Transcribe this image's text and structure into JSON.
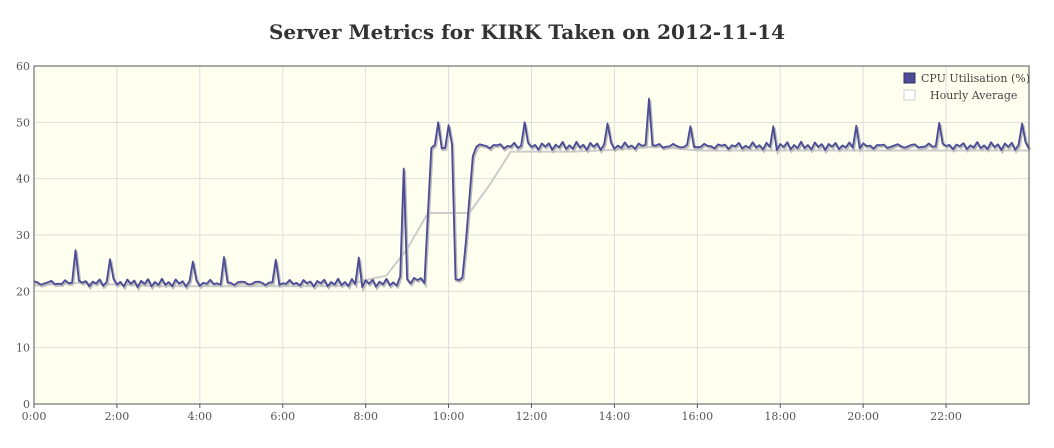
{
  "chart_data": {
    "type": "line",
    "title": "Server Metrics for KIRK Taken on 2012-11-14",
    "xlabel": "",
    "ylabel": "",
    "xlim": [
      0,
      24
    ],
    "ylim": [
      0,
      60
    ],
    "x_ticks": [
      "0:00",
      "2:00",
      "4:00",
      "6:00",
      "8:00",
      "10:00",
      "12:00",
      "14:00",
      "16:00",
      "18:00",
      "20:00",
      "22:00"
    ],
    "y_ticks": [
      0,
      10,
      20,
      30,
      40,
      50,
      60
    ],
    "grid": true,
    "legend_position": "top-right",
    "colors": {
      "cpu": "#4b4b96",
      "hourly": "#cccccc",
      "plot_background": "#fffff0",
      "grid": "#dddddd"
    },
    "series": [
      {
        "name": "CPU Utilisation (%)",
        "color": "#4b4b96",
        "base_segments": [
          {
            "x": [
              0,
              8.75
            ],
            "y": [
              21.5,
              21.5
            ]
          },
          {
            "x": [
              8.75,
              9.45
            ],
            "y": [
              22.0,
              22.0
            ]
          },
          {
            "x": [
              9.55,
              9.9
            ],
            "y": [
              45.5,
              45.5
            ]
          },
          {
            "x": [
              9.95,
              10.1
            ],
            "y": [
              46.0,
              46.0
            ]
          },
          {
            "x": [
              10.15,
              10.35
            ],
            "y": [
              22.3,
              22.3
            ]
          },
          {
            "x": [
              10.6,
              24
            ],
            "y": [
              45.8,
              45.8
            ]
          }
        ],
        "spikes": [
          {
            "x": 1.0,
            "y": 27.3
          },
          {
            "x": 1.85,
            "y": 25.7
          },
          {
            "x": 3.85,
            "y": 25.3
          },
          {
            "x": 4.55,
            "y": 26.1
          },
          {
            "x": 5.85,
            "y": 25.6
          },
          {
            "x": 7.85,
            "y": 26.0
          },
          {
            "x": 8.9,
            "y": 41.8
          },
          {
            "x": 9.75,
            "y": 50.0
          },
          {
            "x": 10.0,
            "y": 49.5
          },
          {
            "x": 11.8,
            "y": 50.0
          },
          {
            "x": 13.85,
            "y": 49.8
          },
          {
            "x": 14.8,
            "y": 54.2
          },
          {
            "x": 15.85,
            "y": 49.3
          },
          {
            "x": 17.8,
            "y": 49.3
          },
          {
            "x": 19.8,
            "y": 49.4
          },
          {
            "x": 21.8,
            "y": 49.9
          },
          {
            "x": 23.85,
            "y": 49.8
          }
        ]
      },
      {
        "name": "Hourly Average",
        "color": "#cccccc",
        "x": [
          0,
          1,
          2,
          3,
          4,
          5,
          6,
          7,
          7.5,
          8,
          8.5,
          9,
          9.5,
          10,
          10.5,
          11,
          11.5,
          12,
          13,
          14,
          15,
          16,
          17,
          18,
          19,
          20,
          21,
          22,
          23,
          24
        ],
        "y": [
          21.0,
          21.5,
          21.2,
          20.9,
          20.9,
          20.9,
          20.9,
          20.9,
          21.0,
          22.0,
          22.8,
          27.5,
          33.9,
          33.9,
          33.9,
          39.0,
          44.8,
          44.8,
          44.8,
          45.1,
          45.7,
          45.0,
          45.0,
          45.0,
          45.0,
          45.0,
          45.0,
          45.0,
          45.0,
          45.0
        ]
      }
    ]
  }
}
